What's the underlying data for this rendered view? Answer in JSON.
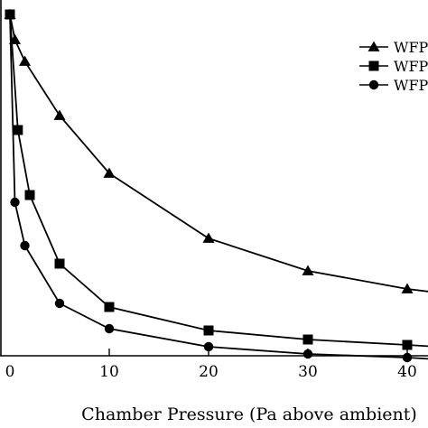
{
  "chart_data": {
    "type": "line",
    "xlabel": "Chamber Pressure (Pa above ambient)",
    "ylabel": "",
    "title": "",
    "x_ticks": [
      10,
      20,
      30,
      40
    ],
    "x_ticks_partial": [
      0
    ],
    "grid": false,
    "legend_position": "top-right",
    "series": [
      {
        "name": "WFP",
        "marker": "triangle",
        "points": [
          [
            0,
            0.96
          ],
          [
            0.5,
            0.89
          ],
          [
            1.5,
            0.83
          ],
          [
            5,
            0.68
          ],
          [
            10,
            0.52
          ],
          [
            20,
            0.34
          ],
          [
            30,
            0.25
          ],
          [
            40,
            0.2
          ],
          [
            43,
            0.19
          ]
        ]
      },
      {
        "name": "WFP",
        "marker": "square",
        "points": [
          [
            0,
            0.96
          ],
          [
            0.8,
            0.64
          ],
          [
            2,
            0.46
          ],
          [
            5,
            0.27
          ],
          [
            10,
            0.15
          ],
          [
            20,
            0.085
          ],
          [
            30,
            0.06
          ],
          [
            40,
            0.045
          ],
          [
            43,
            0.04
          ]
        ]
      },
      {
        "name": "WFP",
        "marker": "circle",
        "points": [
          [
            0,
            0.96
          ],
          [
            0.5,
            0.44
          ],
          [
            1.5,
            0.32
          ],
          [
            5,
            0.16
          ],
          [
            10,
            0.09
          ],
          [
            20,
            0.04
          ],
          [
            30,
            0.02
          ],
          [
            40,
            0.01
          ],
          [
            43,
            0.005
          ]
        ]
      }
    ]
  }
}
